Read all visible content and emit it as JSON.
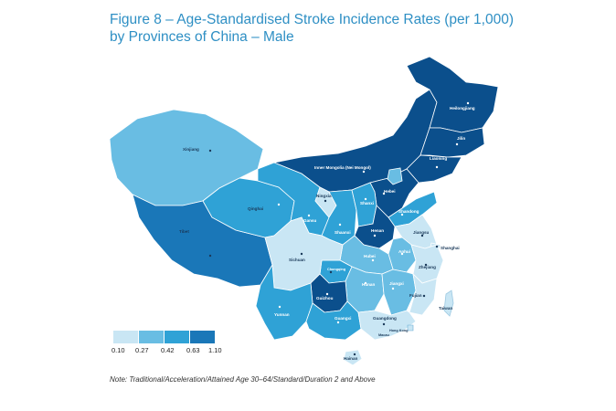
{
  "title": {
    "line1": "Figure 8 –  Age-Standardised Stroke Incidence Rates (per 1,000)",
    "line2": "by Provinces of China – Male"
  },
  "legend": {
    "ticks": [
      "0.10",
      "0.27",
      "0.42",
      "0.63",
      "1.10"
    ],
    "colors": [
      "#c9e6f4",
      "#69bde3",
      "#2fa2d6",
      "#1a77b8",
      "#0b4f8c"
    ]
  },
  "note": "Note: Traditional/Acceleration/Attained Age 30–64/Standard/Duration 2 and Above",
  "provinces": {
    "heilongjiang": "Heilongjiang",
    "jilin": "Jilin",
    "liaoning": "Liaoning",
    "inner_mongolia": "Inner Mongolia (Nei Mongol)",
    "xinjiang": "Xinjiang",
    "tibet": "Tibet",
    "qinghai": "Qinghai",
    "gansu": "Gansu",
    "ningxia": "Ningxia",
    "shaanxi": "Shaanxi",
    "shanxi": "Shanxi",
    "hebei": "Hebei",
    "shandong": "Shandong",
    "henan": "Henan",
    "jiangsu": "Jiangsu",
    "shanghai": "Shanghai",
    "anhui": "Anhui",
    "hubei": "Hubei",
    "zhejiang": "Zhejiang",
    "sichuan": "Sichuan",
    "chongqing": "Chongqing",
    "hunan": "Hunan",
    "jiangxi": "Jiangxi",
    "fujian": "Fujian",
    "taiwan": "Taiwan",
    "guizhou": "Guizhou",
    "yunnan": "Yunnan",
    "guangxi": "Guangxi",
    "guangdong": "Guangdong",
    "hong_kong": "Hong Kong",
    "macau": "Macau",
    "hainan": "Hainan"
  }
}
